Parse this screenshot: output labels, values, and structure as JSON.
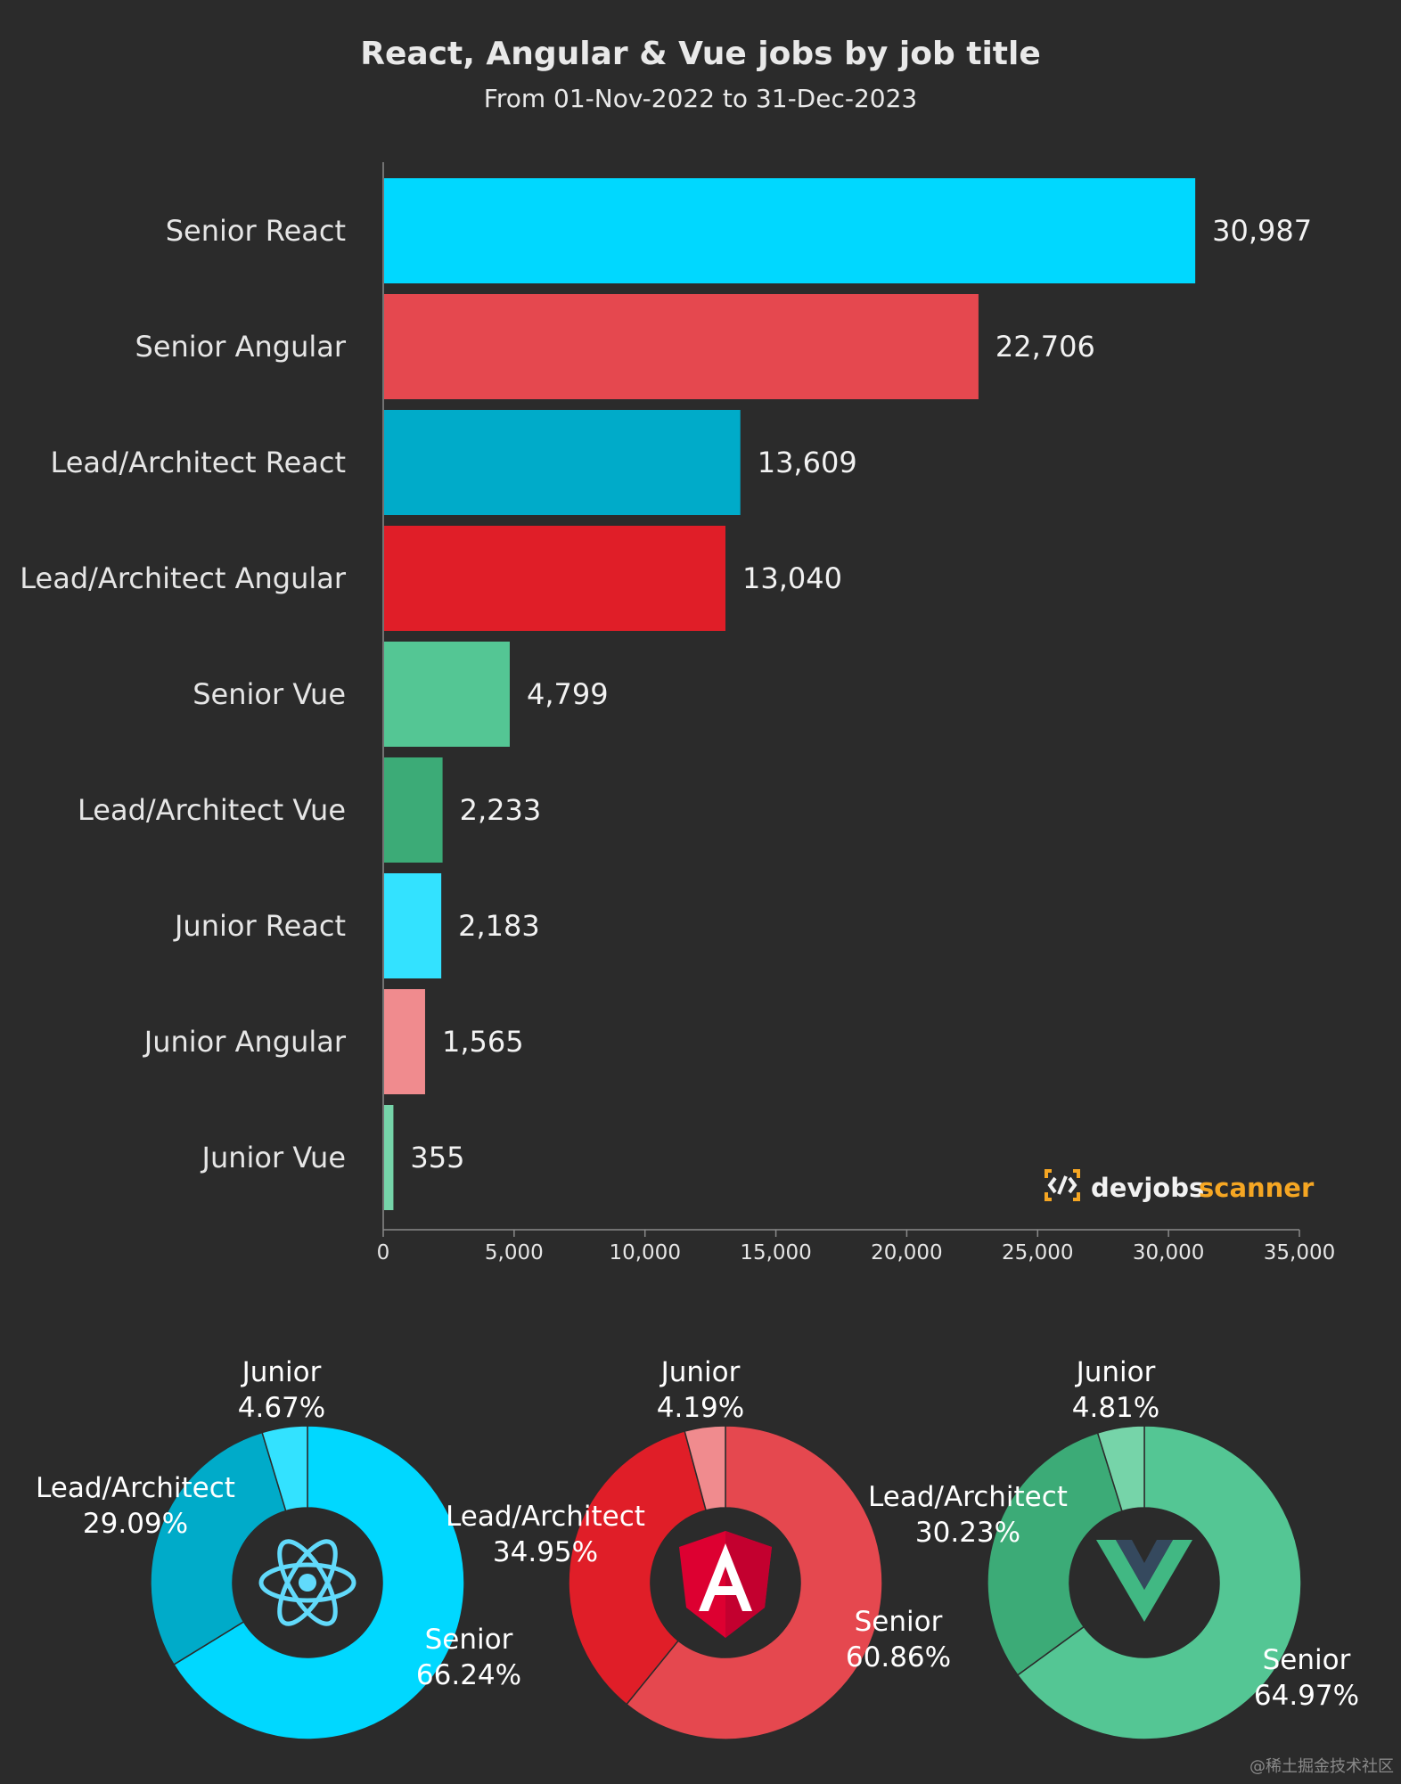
{
  "chart_data": [
    {
      "type": "bar",
      "orientation": "horizontal",
      "title": "React, Angular & Vue jobs by job title",
      "subtitle": "From 01-Nov-2022 to 31-Dec-2023",
      "categories": [
        "Senior React",
        "Senior Angular",
        "Lead/Architect React",
        "Lead/Architect Angular",
        "Senior Vue",
        "Lead/Architect Vue",
        "Junior React",
        "Junior Angular",
        "Junior Vue"
      ],
      "values": [
        30987,
        22706,
        13609,
        13040,
        4799,
        2233,
        2183,
        1565,
        355
      ],
      "value_labels": [
        "30,987",
        "22,706",
        "13,609",
        "13,040",
        "4,799",
        "2,233",
        "2,183",
        "1,565",
        "355"
      ],
      "colors": [
        "#00d8ff",
        "#e5484f",
        "#00abc9",
        "#e01e28",
        "#54c694",
        "#3cab77",
        "#33e2ff",
        "#f08b8e",
        "#76d4a9"
      ],
      "xlim": [
        0,
        35000
      ],
      "xticks": [
        0,
        5000,
        10000,
        15000,
        20000,
        25000,
        30000,
        35000
      ],
      "xtick_labels": [
        "0",
        "5,000",
        "10,000",
        "15,000",
        "20,000",
        "25,000",
        "30,000",
        "35,000"
      ],
      "grid": false
    },
    {
      "type": "pie",
      "donut": true,
      "center_icon": "react-logo-icon",
      "slices": [
        {
          "name": "Senior",
          "value": 66.24,
          "label": "66.24%",
          "color": "#00d8ff"
        },
        {
          "name": "Lead/Architect",
          "value": 29.09,
          "label": "29.09%",
          "color": "#00abc9"
        },
        {
          "name": "Junior",
          "value": 4.67,
          "label": "4.67%",
          "color": "#33e2ff"
        }
      ]
    },
    {
      "type": "pie",
      "donut": true,
      "center_icon": "angular-logo-icon",
      "slices": [
        {
          "name": "Senior",
          "value": 60.86,
          "label": "60.86%",
          "color": "#e5484f"
        },
        {
          "name": "Lead/Architect",
          "value": 34.95,
          "label": "34.95%",
          "color": "#e01e28"
        },
        {
          "name": "Junior",
          "value": 4.19,
          "label": "4.19%",
          "color": "#f08b8e"
        }
      ]
    },
    {
      "type": "pie",
      "donut": true,
      "center_icon": "vue-logo-icon",
      "slices": [
        {
          "name": "Senior",
          "value": 64.97,
          "label": "64.97%",
          "color": "#54c694"
        },
        {
          "name": "Lead/Architect",
          "value": 30.23,
          "label": "30.23%",
          "color": "#3cab77"
        },
        {
          "name": "Junior",
          "value": 4.81,
          "label": "4.81%",
          "color": "#76d4a9"
        }
      ]
    }
  ],
  "brand": {
    "part1": "devjobs",
    "part2": "scanner",
    "icon": "devjobs-logo-icon",
    "color": "#f5a623"
  },
  "watermark": "@稀土掘金技术社区"
}
